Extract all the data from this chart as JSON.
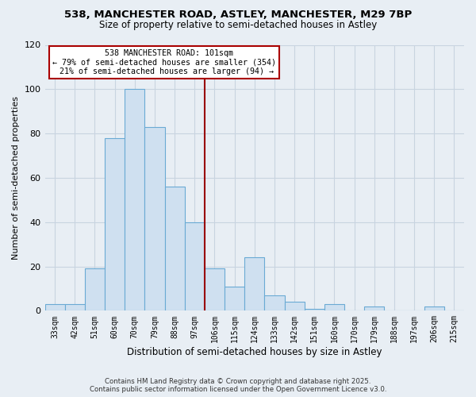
{
  "title_line1": "538, MANCHESTER ROAD, ASTLEY, MANCHESTER, M29 7BP",
  "title_line2": "Size of property relative to semi-detached houses in Astley",
  "xlabel": "Distribution of semi-detached houses by size in Astley",
  "ylabel": "Number of semi-detached properties",
  "bar_labels": [
    "33sqm",
    "42sqm",
    "51sqm",
    "60sqm",
    "70sqm",
    "79sqm",
    "88sqm",
    "97sqm",
    "106sqm",
    "115sqm",
    "124sqm",
    "133sqm",
    "142sqm",
    "151sqm",
    "160sqm",
    "170sqm",
    "179sqm",
    "188sqm",
    "197sqm",
    "206sqm",
    "215sqm"
  ],
  "bar_values": [
    3,
    3,
    19,
    78,
    100,
    83,
    56,
    40,
    19,
    11,
    24,
    7,
    4,
    1,
    3,
    0,
    2,
    0,
    0,
    2,
    0
  ],
  "bar_color": "#cfe0f0",
  "bar_edge_color": "#6aaad4",
  "property_line_x": 7.5,
  "annotation_title": "538 MANCHESTER ROAD: 101sqm",
  "annotation_line2": "← 79% of semi-detached houses are smaller (354)",
  "annotation_line3": "21% of semi-detached houses are larger (94) →",
  "annotation_box_color": "#ffffff",
  "annotation_box_edge_color": "#aa0000",
  "vline_color": "#990000",
  "ylim": [
    0,
    120
  ],
  "yticks": [
    0,
    20,
    40,
    60,
    80,
    100,
    120
  ],
  "grid_color": "#c8d4e0",
  "bg_color": "#e8eef4",
  "footnote_line1": "Contains HM Land Registry data © Crown copyright and database right 2025.",
  "footnote_line2": "Contains public sector information licensed under the Open Government Licence v3.0."
}
